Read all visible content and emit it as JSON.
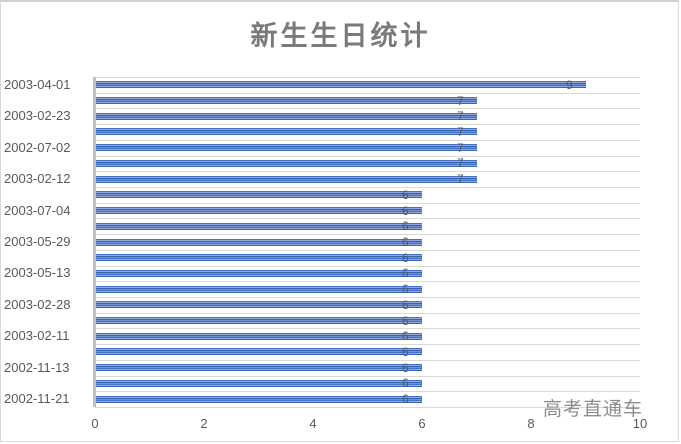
{
  "chart_data": {
    "type": "bar",
    "orientation": "horizontal",
    "title": "新生生日统计",
    "xlabel": "",
    "ylabel": "",
    "xlim": [
      0,
      10
    ],
    "x_ticks": [
      "0",
      "2",
      "4",
      "6",
      "8",
      "10"
    ],
    "grid": true,
    "legend": null,
    "bar_color": "#4472c4",
    "categories_top_to_bottom_visible_labels": [
      "2003-04-01",
      "",
      "2003-02-23",
      "",
      "2002-07-02",
      "",
      "2003-02-12",
      "",
      "2003-07-04",
      "",
      "2003-05-29",
      "",
      "2003-05-13",
      "",
      "2003-02-28",
      "",
      "2003-02-11",
      "",
      "2002-11-13",
      "",
      "2002-11-21"
    ],
    "values_top_to_bottom": [
      9,
      7,
      7,
      7,
      7,
      7,
      7,
      6,
      6,
      6,
      6,
      6,
      6,
      6,
      6,
      6,
      6,
      6,
      6,
      6,
      6
    ],
    "data_labels": [
      "9",
      "7",
      "7",
      "7",
      "7",
      "7",
      "7",
      "6",
      "6",
      "6",
      "6",
      "6",
      "6",
      "6",
      "6",
      "6",
      "6",
      "6",
      "6",
      "6",
      "6"
    ]
  },
  "title": "新生生日统计",
  "watermark": "高考直通车",
  "ticks": [
    "0",
    "2",
    "4",
    "6",
    "8",
    "10"
  ],
  "cats": [
    "2003-04-01",
    "",
    "2003-02-23",
    "",
    "2002-07-02",
    "",
    "2003-02-12",
    "",
    "2003-07-04",
    "",
    "2003-05-29",
    "",
    "2003-05-13",
    "",
    "2003-02-28",
    "",
    "2003-02-11",
    "",
    "2002-11-13",
    "",
    "2002-11-21"
  ],
  "vals": [
    "9",
    "7",
    "7",
    "7",
    "7",
    "7",
    "7",
    "6",
    "6",
    "6",
    "6",
    "6",
    "6",
    "6",
    "6",
    "6",
    "6",
    "6",
    "6",
    "6",
    "6"
  ]
}
